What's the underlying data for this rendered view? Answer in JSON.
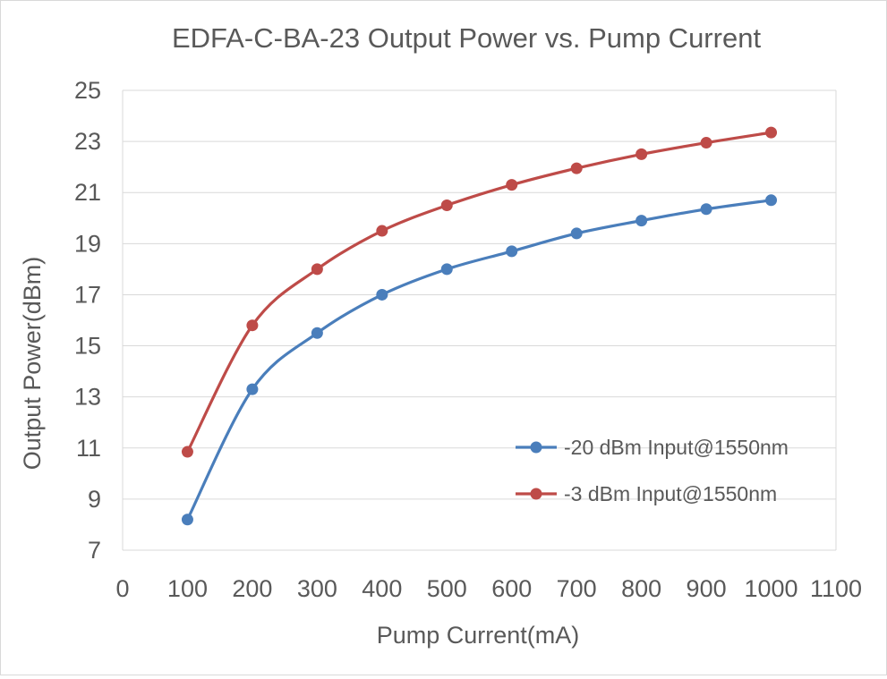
{
  "chart_data": {
    "type": "line",
    "title": "EDFA-C-BA-23  Output Power vs. Pump Current",
    "xlabel": "Pump Current(mA)",
    "ylabel": "Output Power(dBm)",
    "xlim": [
      0,
      1100
    ],
    "ylim": [
      7,
      25
    ],
    "xticks": [
      0,
      100,
      200,
      300,
      400,
      500,
      600,
      700,
      800,
      900,
      1000,
      1100
    ],
    "yticks": [
      7,
      9,
      11,
      13,
      15,
      17,
      19,
      21,
      23,
      25
    ],
    "grid": "horizontal",
    "legend_position": "bottom-right",
    "x": [
      100,
      200,
      300,
      400,
      500,
      600,
      700,
      800,
      900,
      1000
    ],
    "series": [
      {
        "name": "-20 dBm Input@1550nm",
        "color": "#4a7ebb",
        "values": [
          8.2,
          13.3,
          15.5,
          17.0,
          18.0,
          18.7,
          19.4,
          19.9,
          20.35,
          20.7
        ]
      },
      {
        "name": "-3 dBm Input@1550nm",
        "color": "#be4b48",
        "values": [
          10.85,
          15.8,
          18.0,
          19.5,
          20.5,
          21.3,
          21.95,
          22.5,
          22.95,
          23.35
        ]
      }
    ]
  }
}
